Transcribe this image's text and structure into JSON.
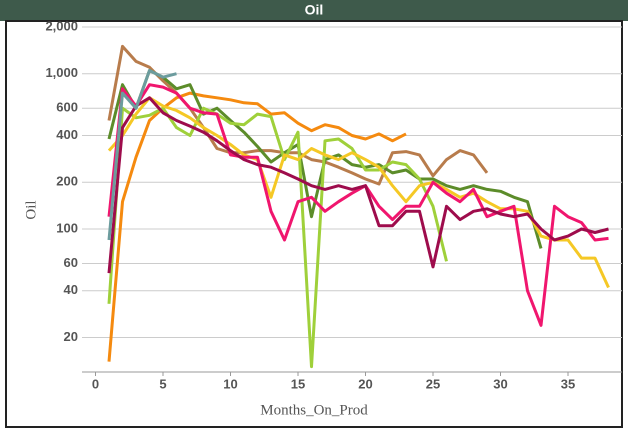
{
  "chart_data": {
    "type": "line",
    "title": "Oil",
    "x_label": "Months_On_Prod",
    "y_label": "Oil",
    "log_y": true,
    "grid": true,
    "x": [
      1,
      2,
      3,
      4,
      5,
      6,
      7,
      8,
      9,
      10,
      11,
      12,
      13,
      14,
      15,
      16,
      17,
      18,
      19,
      20,
      21,
      22,
      23,
      24,
      25,
      26,
      27,
      28,
      29,
      30,
      31,
      32,
      33,
      34,
      35,
      36,
      37,
      38
    ],
    "xlim": [
      -1,
      39
    ],
    "xticks": [
      0,
      5,
      10,
      15,
      20,
      25,
      30,
      35
    ],
    "ylim": [
      12,
      2000
    ],
    "yticks": [
      20,
      40,
      60,
      100,
      200,
      400,
      600,
      {
        "value": 1000,
        "label": "1,000"
      },
      {
        "value": 2000,
        "label": "2,000"
      }
    ],
    "series": [
      {
        "color": "#f58a0f",
        "values": [
          14,
          150,
          290,
          500,
          600,
          700,
          750,
          720,
          700,
          680,
          650,
          640,
          550,
          560,
          480,
          430,
          470,
          450,
          400,
          380,
          410,
          370,
          410,
          null,
          null,
          null,
          null,
          null,
          null,
          null,
          null,
          null,
          null,
          null,
          null,
          null,
          null,
          null
        ]
      },
      {
        "color": "#b87c4c",
        "values": [
          500,
          1500,
          1200,
          1100,
          900,
          750,
          600,
          450,
          330,
          310,
          310,
          320,
          320,
          310,
          310,
          280,
          270,
          250,
          230,
          210,
          195,
          310,
          315,
          300,
          220,
          280,
          320,
          300,
          230,
          null,
          null,
          null,
          null,
          null,
          null,
          null,
          null,
          null
        ]
      },
      {
        "color": "#5c8c2a",
        "values": [
          380,
          850,
          600,
          1050,
          950,
          800,
          850,
          550,
          600,
          500,
          420,
          340,
          270,
          310,
          350,
          120,
          280,
          300,
          260,
          250,
          260,
          230,
          240,
          210,
          210,
          190,
          180,
          190,
          180,
          175,
          160,
          150,
          75,
          null,
          null,
          null,
          null,
          null
        ]
      },
      {
        "color": "#9fd03a",
        "values": [
          33,
          600,
          520,
          540,
          600,
          450,
          400,
          600,
          550,
          480,
          470,
          550,
          530,
          280,
          420,
          13,
          370,
          380,
          330,
          240,
          240,
          270,
          260,
          210,
          140,
          62,
          null,
          null,
          null,
          null,
          null,
          null,
          null,
          null,
          null,
          null,
          null,
          null
        ]
      },
      {
        "color": "#f5c825",
        "values": [
          320,
          400,
          550,
          700,
          620,
          580,
          520,
          450,
          400,
          350,
          300,
          280,
          160,
          300,
          280,
          330,
          300,
          280,
          310,
          280,
          250,
          190,
          150,
          190,
          200,
          180,
          160,
          170,
          150,
          135,
          135,
          130,
          90,
          85,
          85,
          65,
          65,
          42
        ]
      },
      {
        "color": "#f0166e",
        "values": [
          120,
          800,
          620,
          850,
          820,
          750,
          600,
          560,
          550,
          300,
          290,
          290,
          130,
          85,
          150,
          160,
          130,
          150,
          170,
          190,
          140,
          115,
          140,
          140,
          200,
          170,
          150,
          180,
          120,
          130,
          140,
          40,
          24,
          140,
          120,
          110,
          85,
          87
        ]
      },
      {
        "color": "#9e0c4c",
        "values": [
          52,
          450,
          620,
          700,
          560,
          500,
          460,
          420,
          370,
          320,
          280,
          260,
          250,
          230,
          210,
          190,
          180,
          190,
          180,
          190,
          105,
          105,
          130,
          130,
          57,
          140,
          115,
          130,
          135,
          125,
          120,
          125,
          100,
          85,
          90,
          100,
          95,
          100
        ]
      },
      {
        "color": "#6c9c9e",
        "values": [
          85,
          750,
          600,
          1050,
          950,
          1000,
          null,
          null,
          null,
          null,
          null,
          null,
          null,
          null,
          null,
          null,
          null,
          null,
          null,
          null,
          null,
          null,
          null,
          null,
          null,
          null,
          null,
          null,
          null,
          null,
          null,
          null,
          null,
          null,
          null,
          null,
          null,
          null
        ]
      }
    ]
  }
}
